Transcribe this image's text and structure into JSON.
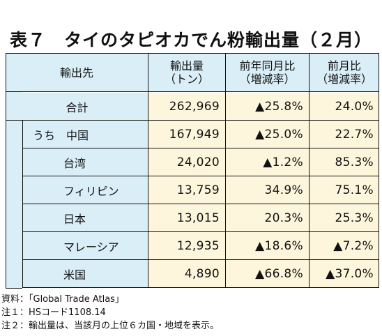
{
  "title": "表７　タイのタピオカでん粉輸出量（２月）",
  "header": {
    "destination": "輸出先",
    "volume": [
      "輸出量",
      "（トン）"
    ],
    "yoy": [
      "前年同月比",
      "（増減率）"
    ],
    "mom": [
      "前月比",
      "（増減率）"
    ]
  },
  "rows": [
    {
      "name": "合計",
      "volume": "262,969",
      "yoy": "▲25.8%",
      "mom": "24.0%"
    },
    {
      "name": "うち　中国",
      "volume": "167,949",
      "yoy": "▲25.0%",
      "mom": "22.7%"
    },
    {
      "name": "台湾",
      "volume": "24,020",
      "yoy": "▲1.2%",
      "mom": "85.3%"
    },
    {
      "name": "フィリピン",
      "volume": "13,759",
      "yoy": "34.9%",
      "mom": "75.1%"
    },
    {
      "name": "日本",
      "volume": "13,015",
      "yoy": "20.3%",
      "mom": "25.3%"
    },
    {
      "name": "マレーシア",
      "volume": "12,935",
      "yoy": "▲18.6%",
      "mom": "▲7.2%"
    },
    {
      "name": "米国",
      "volume": "4,890",
      "yoy": "▲66.8%",
      "mom": "▲37.0%"
    }
  ],
  "notes": [
    "資料：「Global Trade Atlas」",
    "注１：HSコード1108.14",
    "注２：輸出量は、当該月の上位６カ国・地域を表示。"
  ],
  "colors": {
    "header_bg": "#daeef8",
    "value_bg": "#fdf6dc",
    "border": "#111111"
  }
}
